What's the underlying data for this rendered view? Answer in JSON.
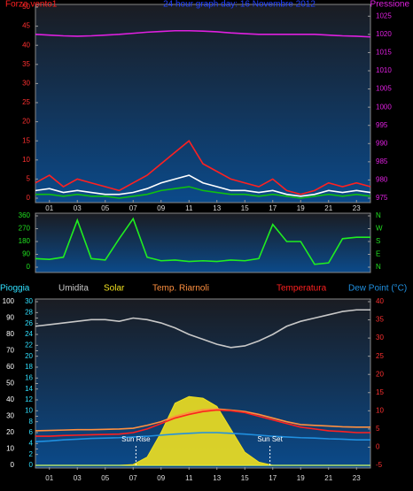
{
  "chart_data": [
    {
      "type": "line",
      "title": "24 hour graph day: 16 Novembre 2012",
      "x": [
        0,
        1,
        2,
        3,
        4,
        5,
        6,
        7,
        8,
        9,
        10,
        11,
        12,
        13,
        14,
        15,
        16,
        17,
        18,
        19,
        20,
        21,
        22,
        23,
        24
      ],
      "xlim": [
        0,
        24
      ],
      "xticks": [
        {
          "value": 1,
          "label": "01"
        },
        {
          "value": 3,
          "label": "03"
        },
        {
          "value": 5,
          "label": "05"
        },
        {
          "value": 7,
          "label": "07"
        },
        {
          "value": 9,
          "label": "09"
        },
        {
          "value": 11,
          "label": "11"
        },
        {
          "value": 13,
          "label": "13"
        },
        {
          "value": 15,
          "label": "15"
        },
        {
          "value": 17,
          "label": "17"
        },
        {
          "value": 19,
          "label": "19"
        },
        {
          "value": 21,
          "label": "21"
        },
        {
          "value": 23,
          "label": "23"
        }
      ],
      "ylim": [
        0,
        50
      ],
      "yticks": [
        0,
        5,
        10,
        15,
        20,
        25,
        30,
        35,
        40,
        45,
        50
      ],
      "ytick_color": "#ff3030",
      "y2lim": [
        975,
        1027.5
      ],
      "y2ticks": [
        975,
        980,
        985,
        990,
        995,
        1000,
        1005,
        1010,
        1015,
        1020,
        1025
      ],
      "y2tick_color": "#e020e0",
      "series": [
        {
          "name": "Forza vento1",
          "color": "#ff2020",
          "values": [
            4,
            6,
            3,
            5,
            4,
            3,
            2,
            4,
            6,
            9,
            12,
            15,
            9,
            7,
            5,
            4,
            3,
            5,
            2,
            1,
            2,
            4,
            3,
            4,
            3
          ]
        },
        {
          "color": "#ffffff",
          "values": [
            2,
            2.5,
            1.5,
            2,
            1.5,
            1,
            1,
            1.5,
            2.5,
            4,
            5,
            6,
            4,
            3,
            2,
            2,
            1.5,
            2,
            1,
            0.5,
            1,
            2,
            1.5,
            2,
            1.5
          ]
        },
        {
          "color": "#10c010",
          "values": [
            1,
            1,
            0.5,
            1,
            0.5,
            0.5,
            0,
            0.5,
            1,
            2,
            2.5,
            3,
            2,
            1.5,
            1,
            1,
            0.5,
            1,
            0.5,
            0,
            0.5,
            1,
            0.5,
            1,
            0.5
          ]
        },
        {
          "name": "Pressione",
          "color": "#e020e0",
          "axis": "y2",
          "values": [
            1020,
            1019.8,
            1019.6,
            1019.5,
            1019.6,
            1019.8,
            1020,
            1020.3,
            1020.6,
            1020.8,
            1021,
            1021,
            1020.9,
            1020.7,
            1020.4,
            1020.2,
            1020,
            1020,
            1020,
            1020,
            1020,
            1019.8,
            1019.6,
            1019.5,
            1019.3
          ]
        }
      ]
    },
    {
      "type": "line",
      "x": [
        0,
        1,
        2,
        3,
        4,
        5,
        6,
        7,
        8,
        9,
        10,
        11,
        12,
        13,
        14,
        15,
        16,
        17,
        18,
        19,
        20,
        21,
        22,
        23,
        24
      ],
      "xlim": [
        0,
        24
      ],
      "ylim": [
        0,
        360
      ],
      "yticks": [
        0,
        90,
        180,
        270,
        360
      ],
      "ytick_color": "#20e020",
      "y2lim": [
        0,
        360
      ],
      "y2ticks": [
        {
          "value": 360,
          "label": "N"
        },
        {
          "value": 270,
          "label": "W"
        },
        {
          "value": 180,
          "label": "S"
        },
        {
          "value": 90,
          "label": "E"
        },
        {
          "value": 0,
          "label": "N"
        }
      ],
      "y2tick_color": "#20e020",
      "series": [
        {
          "color": "#20ee20",
          "values": [
            60,
            55,
            70,
            330,
            60,
            50,
            200,
            340,
            70,
            45,
            50,
            40,
            45,
            40,
            50,
            45,
            60,
            300,
            180,
            180,
            20,
            30,
            200,
            210,
            210
          ]
        }
      ]
    },
    {
      "type": "line",
      "x": [
        0,
        1,
        2,
        3,
        4,
        5,
        6,
        7,
        8,
        9,
        10,
        11,
        12,
        13,
        14,
        15,
        16,
        17,
        18,
        19,
        20,
        21,
        22,
        23,
        24
      ],
      "xlim": [
        0,
        24
      ],
      "xticks": [
        {
          "value": 1,
          "label": "01"
        },
        {
          "value": 3,
          "label": "03"
        },
        {
          "value": 5,
          "label": "05"
        },
        {
          "value": 7,
          "label": "07"
        },
        {
          "value": 9,
          "label": "09"
        },
        {
          "value": 11,
          "label": "11"
        },
        {
          "value": 13,
          "label": "13"
        },
        {
          "value": 15,
          "label": "15"
        },
        {
          "value": 17,
          "label": "17"
        },
        {
          "value": 19,
          "label": "19"
        },
        {
          "value": 21,
          "label": "21"
        },
        {
          "value": 23,
          "label": "23"
        }
      ],
      "ylim": [
        0,
        100
      ],
      "yticks": [
        0,
        10,
        20,
        30,
        40,
        50,
        60,
        70,
        80,
        90,
        100
      ],
      "ytick_color": "#ffffff",
      "y3lim": [
        0,
        30
      ],
      "y3ticks": [
        0,
        2,
        4,
        6,
        8,
        10,
        12,
        14,
        16,
        18,
        20,
        22,
        24,
        26,
        28,
        30
      ],
      "y3tick_color": "#30e0ff",
      "y2lim": [
        -5,
        40
      ],
      "y2ticks": [
        -5,
        0,
        5,
        10,
        15,
        20,
        25,
        30,
        35,
        40
      ],
      "y2tick_color": "#ff3030",
      "series": [
        {
          "name": "Pioggia",
          "color": "#30e0ff",
          "axis": "y3",
          "values": [
            0,
            0,
            0,
            0,
            0,
            0,
            0,
            0,
            0,
            0,
            0,
            0,
            0,
            0,
            0,
            0,
            0,
            0,
            0,
            0,
            0,
            0,
            0,
            0,
            0
          ]
        },
        {
          "name": "Umidita",
          "color": "#c8c8c8",
          "values": [
            85,
            86,
            87,
            88,
            89,
            89,
            88,
            90,
            89,
            87,
            84,
            80,
            77,
            74,
            72,
            73,
            76,
            80,
            85,
            88,
            90,
            92,
            94,
            95,
            95
          ]
        },
        {
          "name": "Solar",
          "color": "#f0e020",
          "style": "area",
          "values": [
            0,
            0,
            0,
            0,
            0,
            0,
            0,
            0.5,
            5,
            20,
            38,
            42,
            41,
            36,
            22,
            8,
            2,
            0,
            0,
            0,
            0,
            0,
            0,
            0,
            0
          ]
        },
        {
          "name": "Temp. Riarnoli",
          "color": "#ff9040",
          "axis": "y2",
          "values": [
            4.5,
            4.6,
            4.7,
            4.8,
            4.8,
            4.9,
            5,
            5.2,
            6,
            7,
            8.5,
            9.5,
            10.3,
            10.5,
            10.2,
            9.8,
            9,
            8,
            7,
            6.2,
            6,
            5.8,
            5.6,
            5.5,
            5.5
          ]
        },
        {
          "name": "Temperatura",
          "color": "#ff2020",
          "axis": "y2",
          "values": [
            3,
            3,
            3.2,
            3.3,
            3.4,
            3.5,
            3.6,
            4,
            5,
            6.5,
            8,
            9,
            9.8,
            10.2,
            10,
            9.5,
            8.5,
            7.5,
            6.5,
            5.5,
            5,
            4.5,
            4.3,
            4,
            4
          ]
        },
        {
          "name": "Dew Point (°C)",
          "color": "#2090e0",
          "axis": "y2",
          "values": [
            1.5,
            1.7,
            2,
            2.2,
            2.4,
            2.5,
            2.6,
            2.8,
            3,
            3.3,
            3.6,
            3.8,
            4,
            4,
            3.8,
            3.6,
            3.3,
            3,
            2.8,
            2.6,
            2.5,
            2.3,
            2.2,
            2,
            2
          ]
        }
      ],
      "annotations": [
        {
          "text": "Sun Rise",
          "x": 7.2
        },
        {
          "text": "Sun Set",
          "x": 16.8
        }
      ]
    }
  ]
}
